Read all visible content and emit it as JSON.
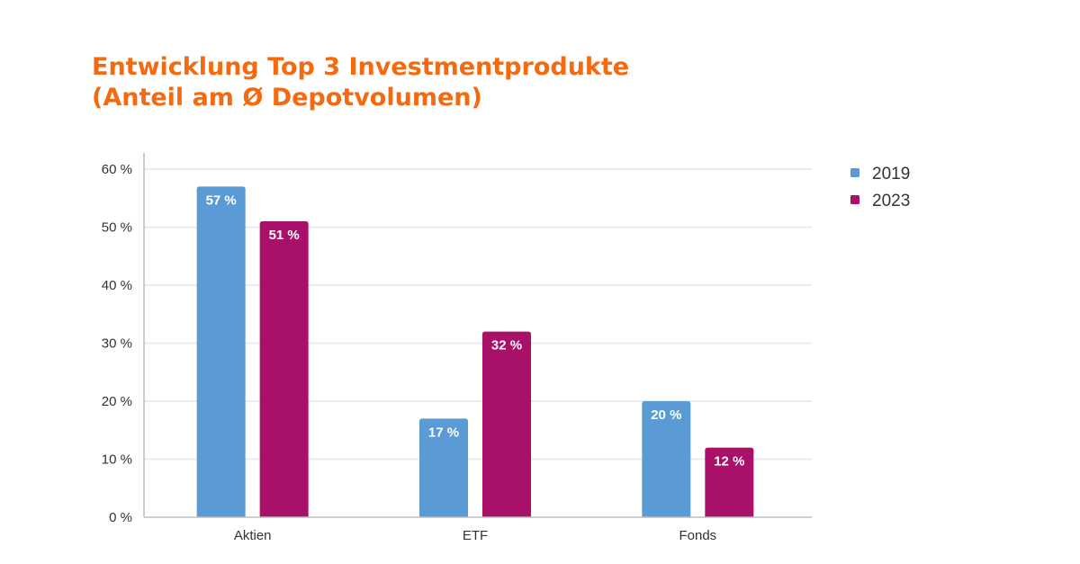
{
  "chart_data": {
    "type": "bar",
    "title_lines": [
      "Entwicklung Top 3 Investmentprodukte",
      "(Anteil am Ø Depotvolumen)"
    ],
    "categories": [
      "Aktien",
      "ETF",
      "Fonds"
    ],
    "series": [
      {
        "name": "2019",
        "values": [
          57,
          17,
          20
        ],
        "labels": [
          "57 %",
          "17 %",
          "20 %"
        ],
        "color": "#5b9bd5"
      },
      {
        "name": "2023",
        "values": [
          51,
          32,
          12
        ],
        "labels": [
          "51 %",
          "32 %",
          "12 %"
        ],
        "color": "#a8106a"
      }
    ],
    "ylim": [
      0,
      60
    ],
    "yticks": [
      0,
      10,
      20,
      30,
      40,
      50,
      60
    ],
    "ytick_labels": [
      "0 %",
      "10 %",
      "20 %",
      "30 %",
      "40 %",
      "50 %",
      "60 %"
    ],
    "grid": true,
    "legend_position": "top-right",
    "title_color": "#f36a10"
  }
}
